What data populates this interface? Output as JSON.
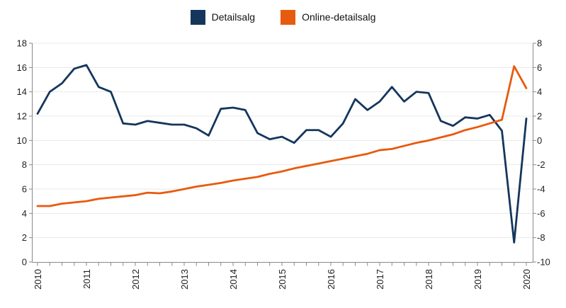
{
  "chart_data": {
    "type": "line",
    "title": "",
    "frequency": "quarterly",
    "x_start": "2010",
    "x_tick_labels": [
      "2010",
      "2011",
      "2012",
      "2013",
      "2014",
      "2015",
      "2016",
      "2017",
      "2018",
      "2019",
      "2020"
    ],
    "left_axis": {
      "min": 0,
      "max": 18,
      "step": 2,
      "ticks": [
        0,
        2,
        4,
        6,
        8,
        10,
        12,
        14,
        16,
        18
      ]
    },
    "right_axis": {
      "min": -10,
      "max": 8,
      "step": 2,
      "ticks": [
        -10,
        -8,
        -6,
        -4,
        -2,
        0,
        2,
        4,
        6,
        8
      ]
    },
    "grid": true,
    "legend_position": "top-center",
    "values_axis_note": "values recorded in left-axis units; right axis = left - 10",
    "series": [
      {
        "name": "Detailsalg",
        "color": "#14365C",
        "values": [
          12.2,
          14.0,
          14.7,
          15.9,
          16.2,
          14.4,
          14.0,
          11.4,
          11.3,
          11.6,
          11.45,
          11.3,
          11.3,
          11.0,
          10.4,
          12.6,
          12.7,
          12.5,
          10.6,
          10.1,
          10.3,
          9.8,
          10.85,
          10.85,
          10.3,
          11.4,
          13.4,
          12.5,
          13.2,
          14.4,
          13.2,
          14.0,
          13.9,
          11.6,
          11.2,
          11.9,
          11.8,
          12.1,
          10.8,
          1.6,
          11.8
        ]
      },
      {
        "name": "Online-detailsalg",
        "color": "#E85A0D",
        "values": [
          4.6,
          4.6,
          4.8,
          4.9,
          5.0,
          5.2,
          5.3,
          5.4,
          5.5,
          5.7,
          5.65,
          5.8,
          6.0,
          6.2,
          6.35,
          6.5,
          6.7,
          6.85,
          7.0,
          7.25,
          7.45,
          7.7,
          7.9,
          8.1,
          8.3,
          8.5,
          8.7,
          8.9,
          9.2,
          9.3,
          9.55,
          9.8,
          10.0,
          10.25,
          10.5,
          10.85,
          11.1,
          11.4,
          11.7,
          16.1,
          14.3
        ]
      }
    ],
    "colors": {
      "grid": "#e8e8e8",
      "axis": "#8a8a8a",
      "tick_text": "#1f1f1f"
    }
  }
}
